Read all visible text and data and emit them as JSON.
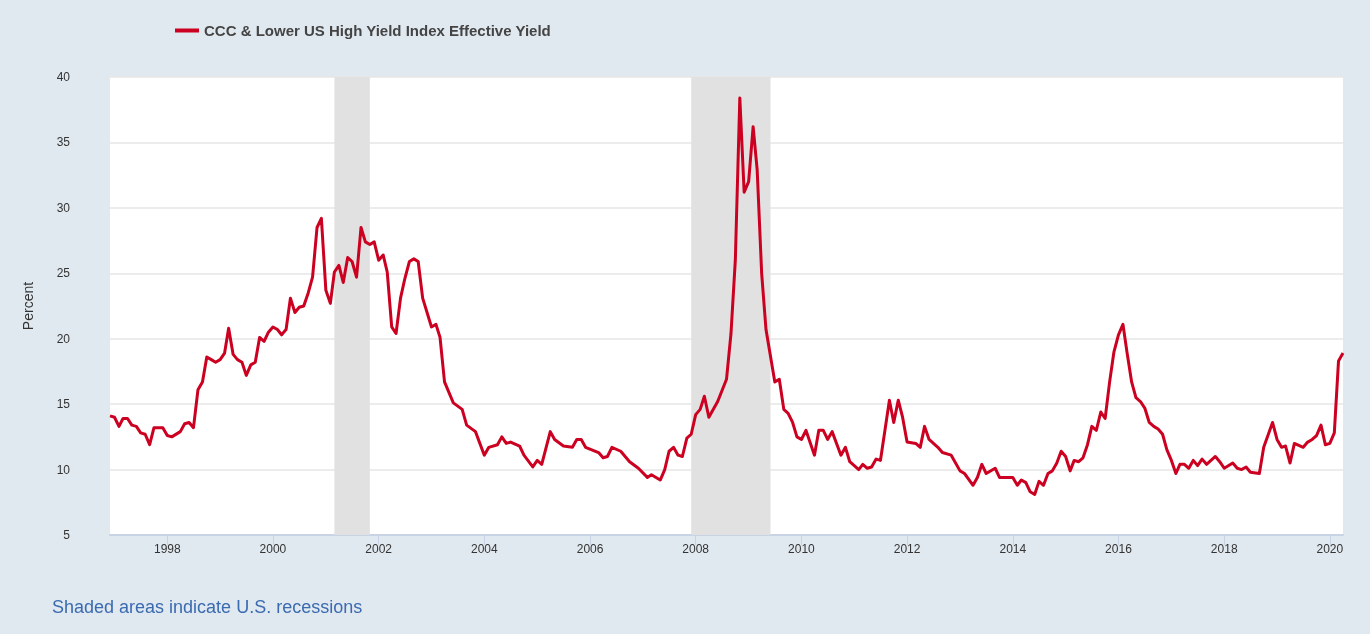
{
  "chart_data": {
    "type": "line",
    "ylabel": "Percent",
    "annotations": [
      "Shaded areas indicate U.S. recessions"
    ],
    "legend": "top left",
    "grid": "y",
    "line_style": "solid",
    "marker": "none",
    "xlim": [
      "1996-12",
      "2020-04"
    ],
    "xticks": [
      "1998",
      "2000",
      "2002",
      "2004",
      "2006",
      "2008",
      "2010",
      "2012",
      "2014",
      "2016",
      "2018",
      "2020"
    ],
    "ylim": [
      5,
      40
    ],
    "yticks": [
      5,
      10,
      15,
      20,
      25,
      30,
      35,
      40
    ],
    "bands": [
      {
        "axis": "x",
        "from": "2001-03",
        "to": "2001-11",
        "color": "#e1e1e1"
      },
      {
        "axis": "x",
        "from": "2007-12",
        "to": "2009-06",
        "color": "#e1e1e1"
      }
    ],
    "series": [
      {
        "name": "CCC & Lower US High Yield Index Effective Yield",
        "color": "#cc0020",
        "x": [
          "1996-12",
          "1997-01",
          "1997-02",
          "1997-03",
          "1997-04",
          "1997-05",
          "1997-06",
          "1997-07",
          "1997-08",
          "1997-09",
          "1997-10",
          "1997-12",
          "1998-01",
          "1998-02",
          "1998-04",
          "1998-05",
          "1998-06",
          "1998-07",
          "1998-08",
          "1998-09",
          "1998-10",
          "1998-11",
          "1998-12",
          "1999-01",
          "1999-02",
          "1999-03",
          "1999-04",
          "1999-05",
          "1999-06",
          "1999-07",
          "1999-08",
          "1999-09",
          "1999-10",
          "1999-11",
          "1999-12",
          "2000-01",
          "2000-02",
          "2000-03",
          "2000-04",
          "2000-05",
          "2000-06",
          "2000-07",
          "2000-08",
          "2000-09",
          "2000-10",
          "2000-11",
          "2000-12",
          "2001-01",
          "2001-02",
          "2001-03",
          "2001-04",
          "2001-05",
          "2001-06",
          "2001-07",
          "2001-08",
          "2001-09",
          "2001-10",
          "2001-11",
          "2001-12",
          "2002-01",
          "2002-02",
          "2002-03",
          "2002-04",
          "2002-05",
          "2002-06",
          "2002-07",
          "2002-08",
          "2002-09",
          "2002-10",
          "2002-11",
          "2003-01",
          "2003-02",
          "2003-03",
          "2003-04",
          "2003-06",
          "2003-08",
          "2003-09",
          "2003-11",
          "2004-01",
          "2004-02",
          "2004-04",
          "2004-05",
          "2004-06",
          "2004-07",
          "2004-09",
          "2004-10",
          "2004-12",
          "2005-01",
          "2005-02",
          "2005-04",
          "2005-05",
          "2005-07",
          "2005-09",
          "2005-10",
          "2005-11",
          "2005-12",
          "2006-03",
          "2006-04",
          "2006-05",
          "2006-06",
          "2006-08",
          "2006-10",
          "2006-12",
          "2007-02",
          "2007-03",
          "2007-05",
          "2007-06",
          "2007-07",
          "2007-08",
          "2007-09",
          "2007-10",
          "2007-11",
          "2007-12",
          "2008-01",
          "2008-02",
          "2008-03",
          "2008-04",
          "2008-06",
          "2008-08",
          "2008-09",
          "2008-10",
          "2008-11",
          "2008-12",
          "2009-01",
          "2009-02",
          "2009-03",
          "2009-04",
          "2009-05",
          "2009-07",
          "2009-08",
          "2009-09",
          "2009-10",
          "2009-11",
          "2009-12",
          "2010-01",
          "2010-02",
          "2010-04",
          "2010-05",
          "2010-06",
          "2010-07",
          "2010-08",
          "2010-10",
          "2010-11",
          "2010-12",
          "2011-02",
          "2011-03",
          "2011-04",
          "2011-05",
          "2011-06",
          "2011-07",
          "2011-09",
          "2011-10",
          "2011-11",
          "2011-12",
          "2012-01",
          "2012-03",
          "2012-04",
          "2012-05",
          "2012-06",
          "2012-08",
          "2012-09",
          "2012-11",
          "2013-01",
          "2013-02",
          "2013-04",
          "2013-05",
          "2013-06",
          "2013-07",
          "2013-09",
          "2013-10",
          "2014-01",
          "2014-02",
          "2014-03",
          "2014-04",
          "2014-05",
          "2014-06",
          "2014-07",
          "2014-08",
          "2014-09",
          "2014-10",
          "2014-11",
          "2014-12",
          "2015-01",
          "2015-02",
          "2015-03",
          "2015-04",
          "2015-05",
          "2015-06",
          "2015-07",
          "2015-08",
          "2015-09",
          "2015-10",
          "2015-11",
          "2015-12",
          "2016-01",
          "2016-02",
          "2016-03",
          "2016-04",
          "2016-05",
          "2016-06",
          "2016-07",
          "2016-08",
          "2016-09",
          "2016-10",
          "2016-11",
          "2016-12",
          "2017-01",
          "2017-02",
          "2017-03",
          "2017-04",
          "2017-05",
          "2017-06",
          "2017-07",
          "2017-08",
          "2017-09",
          "2017-11",
          "2017-12",
          "2018-01",
          "2018-03",
          "2018-04",
          "2018-05",
          "2018-06",
          "2018-07",
          "2018-09",
          "2018-10",
          "2018-12",
          "2019-01",
          "2019-02",
          "2019-03",
          "2019-04",
          "2019-05",
          "2019-07",
          "2019-08",
          "2019-09",
          "2019-10",
          "2019-11",
          "2019-12",
          "2020-01",
          "2020-02",
          "2020-03",
          "2020-04"
        ],
        "values": [
          14.1,
          14.0,
          13.3,
          13.9,
          13.9,
          13.4,
          13.3,
          12.8,
          12.7,
          11.9,
          13.2,
          13.2,
          12.6,
          12.5,
          12.9,
          13.5,
          13.6,
          13.2,
          16.1,
          16.7,
          18.6,
          18.4,
          18.2,
          18.4,
          18.9,
          20.8,
          18.8,
          18.4,
          18.2,
          17.2,
          18.0,
          18.2,
          20.1,
          19.8,
          20.5,
          20.9,
          20.7,
          20.3,
          20.7,
          23.1,
          22.0,
          22.4,
          22.5,
          23.5,
          24.7,
          28.5,
          29.2,
          23.7,
          22.7,
          25.1,
          25.6,
          24.3,
          26.2,
          25.9,
          24.7,
          28.5,
          27.4,
          27.2,
          27.4,
          26.0,
          26.4,
          25.1,
          20.9,
          20.4,
          23.1,
          24.6,
          25.9,
          26.1,
          25.9,
          23.1,
          20.9,
          21.1,
          20.1,
          16.7,
          15.1,
          14.6,
          13.4,
          12.9,
          11.1,
          11.7,
          11.9,
          12.5,
          12.0,
          12.1,
          11.8,
          11.1,
          10.2,
          10.7,
          10.4,
          12.9,
          12.3,
          11.8,
          11.7,
          12.3,
          12.3,
          11.7,
          11.3,
          10.9,
          11.0,
          11.7,
          11.4,
          10.6,
          10.1,
          9.4,
          9.6,
          9.2,
          10.0,
          11.4,
          11.7,
          11.1,
          11.0,
          12.4,
          12.7,
          14.2,
          14.6,
          15.6,
          14.0,
          15.2,
          16.9,
          20.4,
          26.0,
          38.4,
          31.2,
          32.0,
          36.2,
          32.9,
          25.0,
          20.7,
          16.7,
          16.9,
          14.6,
          14.3,
          13.6,
          12.5,
          12.3,
          13.0,
          11.1,
          13.0,
          13.0,
          12.3,
          12.9,
          11.1,
          11.7,
          10.6,
          10.0,
          10.4,
          10.1,
          10.2,
          10.8,
          10.7,
          15.3,
          13.6,
          15.3,
          14.0,
          12.1,
          12.0,
          11.7,
          13.3,
          12.3,
          11.7,
          11.3,
          11.1,
          9.9,
          9.7,
          8.8,
          9.4,
          10.4,
          9.7,
          10.1,
          9.4,
          9.4,
          8.8,
          9.2,
          9.0,
          8.3,
          8.1,
          9.1,
          8.8,
          9.7,
          9.9,
          10.5,
          11.4,
          11.0,
          9.9,
          10.7,
          10.6,
          10.9,
          11.9,
          13.3,
          13.0,
          14.4,
          13.9,
          16.7,
          19.0,
          20.3,
          21.1,
          18.9,
          16.7,
          15.5,
          15.2,
          14.7,
          13.6,
          13.3,
          13.1,
          12.7,
          11.5,
          10.7,
          9.7,
          10.4,
          10.4,
          10.1,
          10.7,
          10.3,
          10.8,
          10.4,
          11.0,
          10.6,
          10.1,
          10.5,
          10.1,
          10.0,
          10.2,
          9.8,
          9.7,
          11.7,
          13.6,
          12.3,
          11.7,
          11.8,
          10.5,
          12.0,
          11.7,
          12.1,
          12.3,
          12.6,
          13.4,
          11.9,
          12.0,
          12.8,
          18.3,
          18.9
        ]
      }
    ]
  }
}
